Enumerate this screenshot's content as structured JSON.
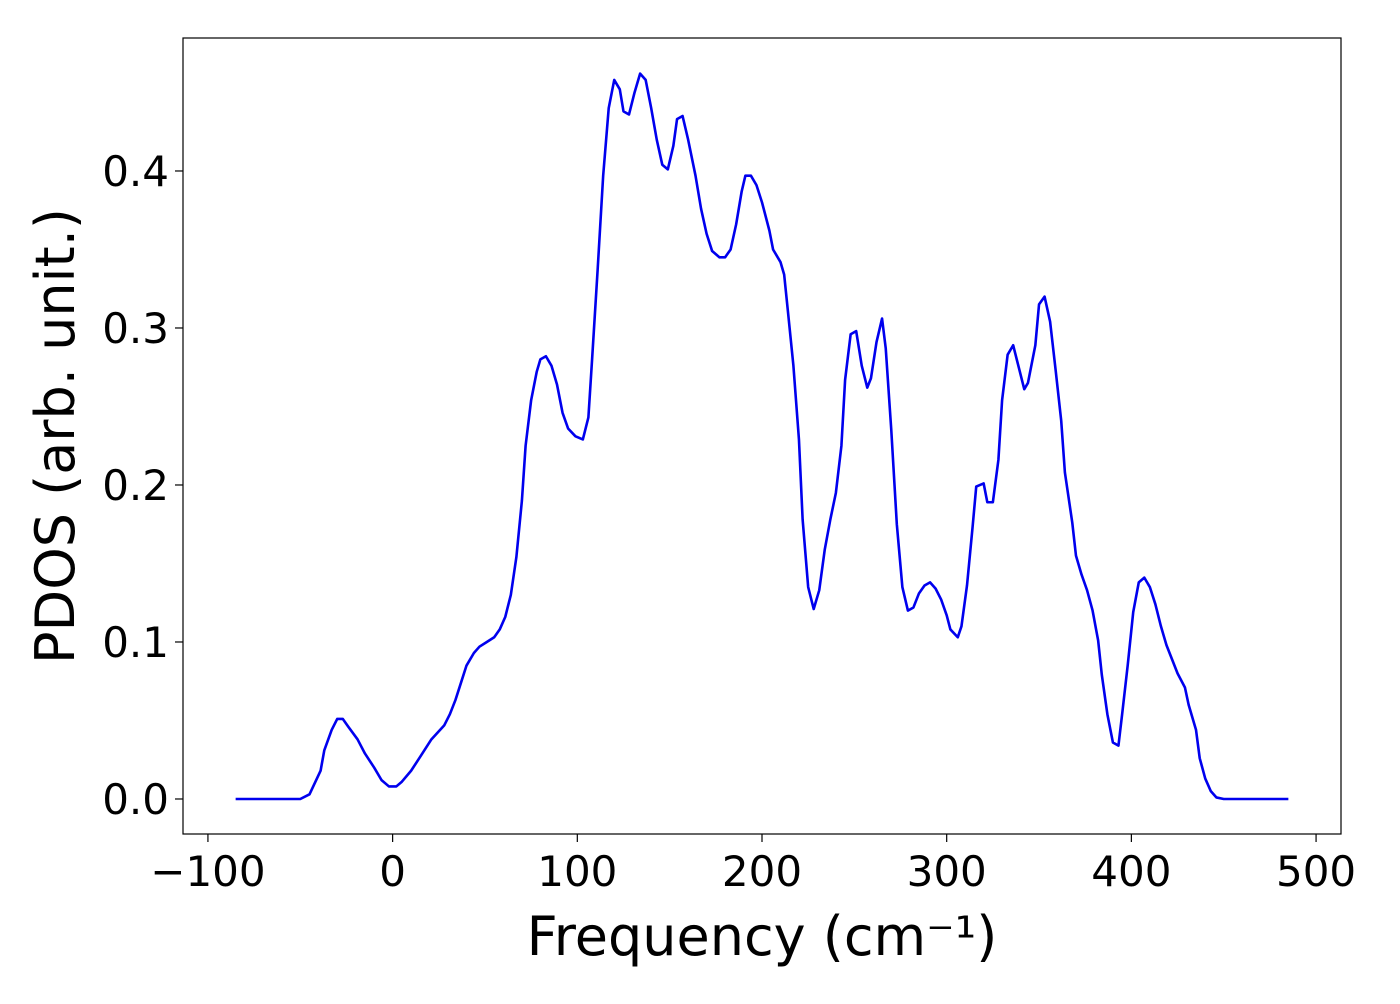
{
  "chart_data": {
    "type": "line",
    "xlabel": "Frequency (cm⁻¹)",
    "ylabel": "PDOS (arb. unit.)",
    "xlim": [
      -113.5,
      513.5
    ],
    "ylim": [
      -0.0223,
      0.4847
    ],
    "xticks": [
      {
        "value": -100,
        "label": "−100"
      },
      0,
      100,
      200,
      300,
      400,
      500
    ],
    "yticks": [
      {
        "value": 0,
        "label": "0.0"
      },
      0.1,
      0.2,
      0.3,
      0.4
    ],
    "series": [
      {
        "name": "PDOS",
        "color": "#0000ee",
        "x": [
          -85,
          -50,
          -45,
          -43,
          -39,
          -37,
          -33,
          -30,
          -27,
          -24,
          -19,
          -15,
          -10,
          -6,
          -2,
          2,
          5,
          10,
          15,
          21,
          28,
          31,
          34,
          37,
          40,
          44,
          47,
          51,
          55,
          58,
          61,
          64,
          67,
          70,
          72,
          75,
          78,
          80,
          83,
          86,
          89,
          92,
          95,
          99,
          103,
          106,
          108,
          111,
          114,
          117,
          120,
          123,
          125,
          128,
          131,
          134,
          137,
          140,
          143,
          146,
          149,
          152,
          154,
          157,
          160,
          164,
          167,
          170,
          173,
          177,
          180,
          183,
          186,
          189,
          191,
          194,
          197,
          200,
          204,
          206,
          210,
          212,
          214,
          217,
          220,
          222,
          225,
          228,
          231,
          234,
          237,
          240,
          243,
          245,
          248,
          251,
          254,
          257,
          259,
          262,
          265,
          267,
          270,
          273,
          276,
          279,
          282,
          285,
          288,
          291,
          294,
          297,
          300,
          302,
          306,
          308,
          311,
          314,
          316,
          320,
          322,
          325,
          328,
          330,
          333,
          336,
          339,
          342,
          344,
          348,
          350,
          353,
          356,
          359,
          362,
          364,
          368,
          370,
          373,
          376,
          379,
          382,
          384,
          387,
          390,
          393,
          395,
          398,
          401,
          404,
          407,
          410,
          413,
          416,
          419,
          422,
          425,
          429,
          431,
          435,
          437,
          440,
          443,
          446,
          450,
          485
        ],
        "values": [
          0,
          0,
          0.003,
          0.008,
          0.018,
          0.031,
          0.044,
          0.051,
          0.051,
          0.046,
          0.038,
          0.029,
          0.02,
          0.012,
          0.008,
          0.008,
          0.011,
          0.018,
          0.027,
          0.038,
          0.047,
          0.054,
          0.063,
          0.074,
          0.085,
          0.093,
          0.097,
          0.1,
          0.103,
          0.108,
          0.116,
          0.13,
          0.154,
          0.19,
          0.225,
          0.254,
          0.272,
          0.28,
          0.282,
          0.276,
          0.264,
          0.246,
          0.236,
          0.231,
          0.229,
          0.243,
          0.28,
          0.337,
          0.397,
          0.44,
          0.458,
          0.452,
          0.438,
          0.436,
          0.45,
          0.462,
          0.458,
          0.44,
          0.42,
          0.404,
          0.401,
          0.416,
          0.433,
          0.435,
          0.42,
          0.397,
          0.376,
          0.36,
          0.349,
          0.345,
          0.345,
          0.35,
          0.366,
          0.387,
          0.397,
          0.397,
          0.391,
          0.38,
          0.362,
          0.35,
          0.342,
          0.334,
          0.311,
          0.276,
          0.229,
          0.178,
          0.135,
          0.121,
          0.133,
          0.159,
          0.178,
          0.195,
          0.225,
          0.267,
          0.296,
          0.298,
          0.276,
          0.262,
          0.268,
          0.291,
          0.306,
          0.287,
          0.235,
          0.175,
          0.135,
          0.12,
          0.122,
          0.131,
          0.136,
          0.138,
          0.134,
          0.127,
          0.117,
          0.108,
          0.103,
          0.11,
          0.136,
          0.173,
          0.199,
          0.201,
          0.189,
          0.189,
          0.216,
          0.254,
          0.283,
          0.289,
          0.275,
          0.261,
          0.265,
          0.289,
          0.315,
          0.32,
          0.304,
          0.273,
          0.241,
          0.208,
          0.176,
          0.155,
          0.143,
          0.133,
          0.12,
          0.101,
          0.079,
          0.054,
          0.036,
          0.034,
          0.054,
          0.085,
          0.119,
          0.138,
          0.141,
          0.135,
          0.124,
          0.11,
          0.098,
          0.089,
          0.08,
          0.071,
          0.06,
          0.044,
          0.026,
          0.013,
          0.005,
          0.001,
          0,
          0
        ]
      }
    ]
  }
}
